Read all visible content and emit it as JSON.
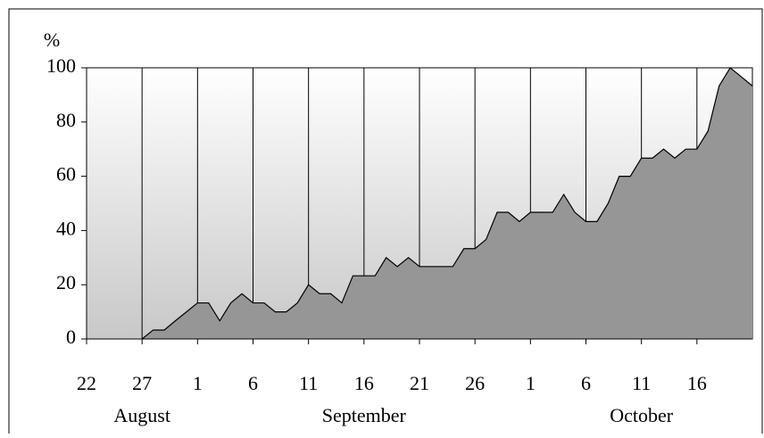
{
  "chart_data": {
    "type": "area",
    "y_label": "%",
    "x": [
      "08-27",
      "08-28",
      "08-29",
      "08-30",
      "08-31",
      "09-01",
      "09-02",
      "09-03",
      "09-04",
      "09-05",
      "09-06",
      "09-07",
      "09-08",
      "09-09",
      "09-10",
      "09-11",
      "09-12",
      "09-13",
      "09-14",
      "09-15",
      "09-16",
      "09-17",
      "09-18",
      "09-19",
      "09-20",
      "09-21",
      "09-22",
      "09-23",
      "09-24",
      "09-25",
      "09-26",
      "09-27",
      "09-28",
      "09-29",
      "09-30",
      "10-01",
      "10-02",
      "10-03",
      "10-04",
      "10-05",
      "10-06",
      "10-07",
      "10-08",
      "10-09",
      "10-10",
      "10-11",
      "10-12",
      "10-13",
      "10-14",
      "10-15",
      "10-16",
      "10-17",
      "10-18",
      "10-19",
      "10-20",
      "10-21"
    ],
    "series": [
      {
        "color": "#969696",
        "values": [
          0,
          3.3,
          3.3,
          6.7,
          10,
          13.3,
          13.3,
          6.7,
          13.3,
          16.7,
          13.3,
          13.3,
          10,
          10,
          13.3,
          20,
          16.7,
          16.7,
          13.3,
          23.3,
          23.3,
          23.3,
          30,
          26.7,
          30,
          26.7,
          26.7,
          26.7,
          26.7,
          33.3,
          33.3,
          36.7,
          46.7,
          46.7,
          43.3,
          46.7,
          46.7,
          46.7,
          53.3,
          46.7,
          43.3,
          43.3,
          50,
          60,
          60,
          66.7,
          66.7,
          70,
          66.7,
          70,
          70,
          76.7,
          93.3,
          100,
          96.7,
          93.3
        ]
      }
    ],
    "xlim": [
      "08-22",
      "10-21"
    ],
    "xticks": [
      {
        "value": "08-22",
        "label": "22"
      },
      {
        "value": "08-27",
        "label": "27"
      },
      {
        "value": "09-01",
        "label": "1"
      },
      {
        "value": "09-06",
        "label": "6"
      },
      {
        "value": "09-11",
        "label": "11"
      },
      {
        "value": "09-16",
        "label": "16"
      },
      {
        "value": "09-21",
        "label": "21"
      },
      {
        "value": "09-26",
        "label": "26"
      },
      {
        "value": "10-01",
        "label": "1"
      },
      {
        "value": "10-06",
        "label": "6"
      },
      {
        "value": "10-11",
        "label": "11"
      },
      {
        "value": "10-16",
        "label": "16"
      }
    ],
    "months": [
      {
        "value": "08",
        "label": "August"
      },
      {
        "value": "09",
        "label": "September"
      },
      {
        "value": "10",
        "label": "October"
      }
    ],
    "ylim": [
      0,
      100
    ],
    "yticks": [
      0,
      20,
      40,
      60,
      80,
      100
    ],
    "grid": "x"
  }
}
